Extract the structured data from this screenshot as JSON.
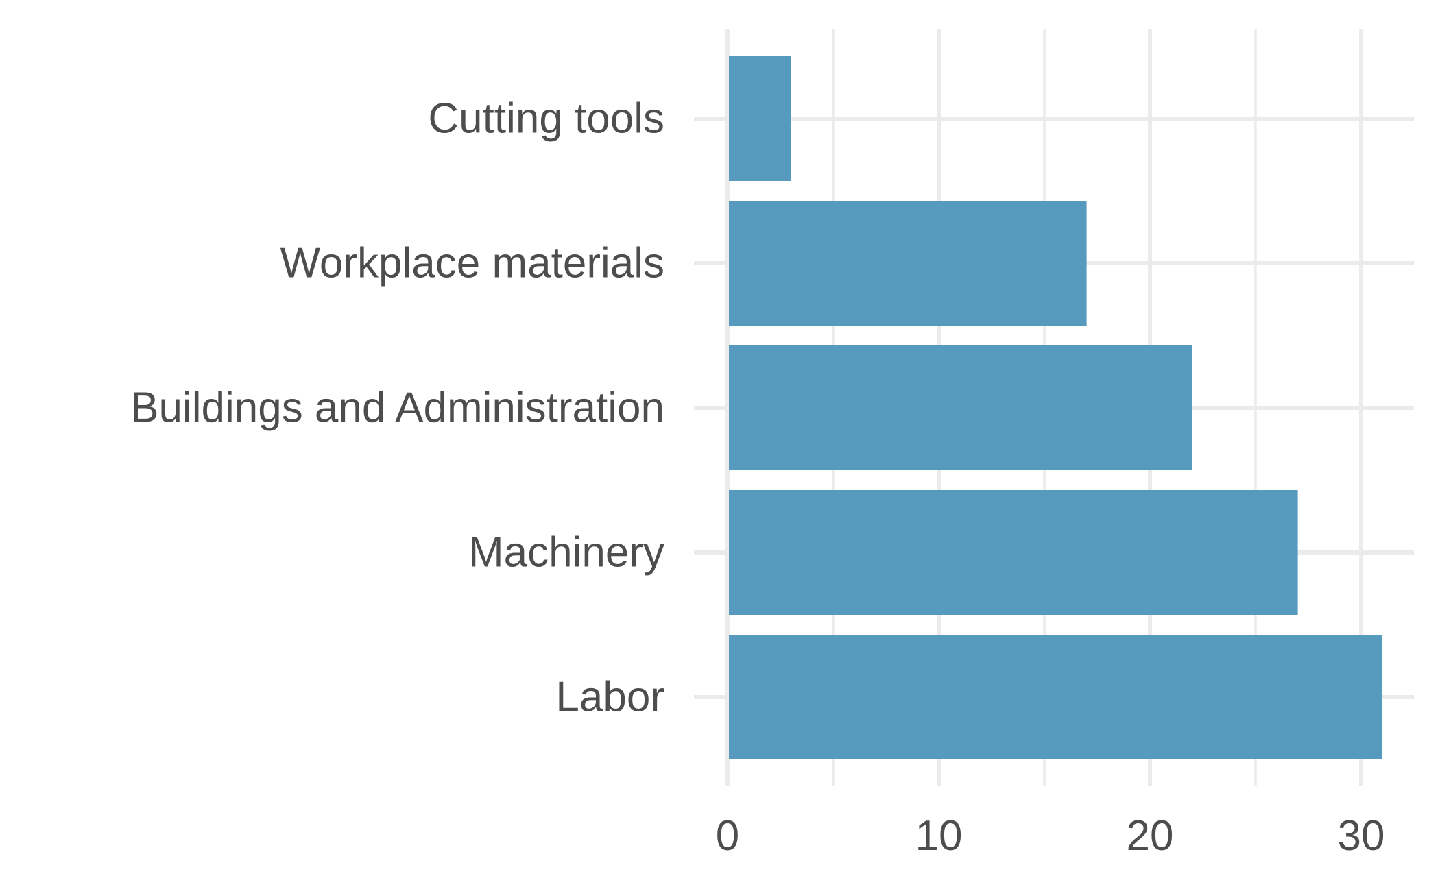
{
  "chart_data": {
    "type": "bar",
    "orientation": "horizontal",
    "categories": [
      "Cutting tools",
      "Workplace materials",
      "Buildings and Administration",
      "Machinery",
      "Labor"
    ],
    "values": [
      3,
      17,
      22,
      27,
      31
    ],
    "x_ticks": [
      "0",
      "10",
      "20",
      "30"
    ],
    "xlim": [
      0,
      32.5
    ],
    "grid": true,
    "bar_color": "#569bbd",
    "title": "",
    "xlabel": "",
    "ylabel": ""
  }
}
